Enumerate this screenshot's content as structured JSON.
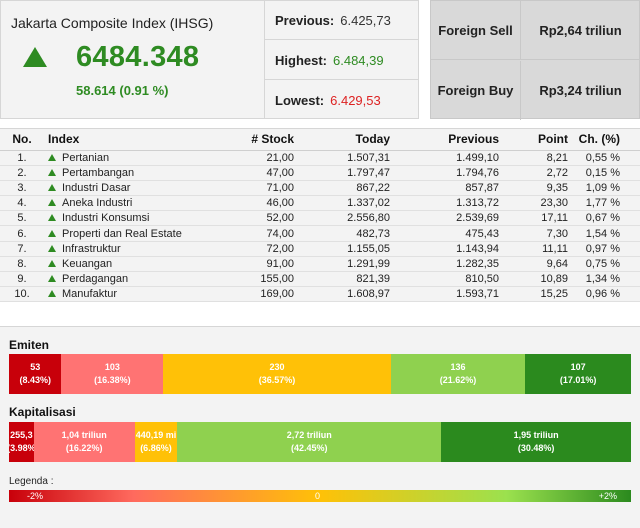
{
  "summary": {
    "index_title": "Jakarta Composite Index (IHSG)",
    "index_value": "6484.348",
    "index_change": "58.614 (0.91 %)",
    "previous_label": "Previous:",
    "previous_value": "6.425,73",
    "highest_label": "Highest:",
    "highest_value": "6.484,39",
    "lowest_label": "Lowest:",
    "lowest_value": "6.429,53",
    "foreign_sell_label": "Foreign Sell",
    "foreign_sell_value": "Rp2,64 triliun",
    "foreign_buy_label": "Foreign Buy",
    "foreign_buy_value": "Rp3,24 triliun",
    "up_color": "#2e8b22",
    "down_color": "#dd2222"
  },
  "table": {
    "headers": {
      "no": "No.",
      "index": "Index",
      "stock": "# Stock",
      "today": "Today",
      "previous": "Previous",
      "point": "Point",
      "change": "Ch. (%)"
    },
    "rows": [
      {
        "no": "1.",
        "index": "Pertanian",
        "stock": "21,00",
        "today": "1.507,31",
        "previous": "1.499,10",
        "point": "8,21",
        "change": "0,55 %"
      },
      {
        "no": "2.",
        "index": "Pertambangan",
        "stock": "47,00",
        "today": "1.797,47",
        "previous": "1.794,76",
        "point": "2,72",
        "change": "0,15 %"
      },
      {
        "no": "3.",
        "index": "Industri Dasar",
        "stock": "71,00",
        "today": "867,22",
        "previous": "857,87",
        "point": "9,35",
        "change": "1,09 %"
      },
      {
        "no": "4.",
        "index": "Aneka Industri",
        "stock": "46,00",
        "today": "1.337,02",
        "previous": "1.313,72",
        "point": "23,30",
        "change": "1,77 %"
      },
      {
        "no": "5.",
        "index": "Industri Konsumsi",
        "stock": "52,00",
        "today": "2.556,80",
        "previous": "2.539,69",
        "point": "17,11",
        "change": "0,67 %"
      },
      {
        "no": "6.",
        "index": "Properti dan Real Estate",
        "stock": "74,00",
        "today": "482,73",
        "previous": "475,43",
        "point": "7,30",
        "change": "1,54 %"
      },
      {
        "no": "7.",
        "index": "Infrastruktur",
        "stock": "72,00",
        "today": "1.155,05",
        "previous": "1.143,94",
        "point": "11,11",
        "change": "0,97 %"
      },
      {
        "no": "8.",
        "index": "Keuangan",
        "stock": "91,00",
        "today": "1.291,99",
        "previous": "1.282,35",
        "point": "9,64",
        "change": "0,75 %"
      },
      {
        "no": "9.",
        "index": "Perdagangan",
        "stock": "155,00",
        "today": "821,39",
        "previous": "810,50",
        "point": "10,89",
        "change": "1,34 %"
      },
      {
        "no": "10.",
        "index": "Manufaktur",
        "stock": "169,00",
        "today": "1.608,97",
        "previous": "1.593,71",
        "point": "15,25",
        "change": "0,96 %"
      }
    ]
  },
  "emiten": {
    "title": "Emiten",
    "segments": [
      {
        "label": "53",
        "pct": "(8.43%)",
        "share": 8.43,
        "color": "#c8000a"
      },
      {
        "label": "103",
        "pct": "(16.38%)",
        "share": 16.38,
        "color": "#ff7373"
      },
      {
        "label": "230",
        "pct": "(36.57%)",
        "share": 36.57,
        "color": "#ffc107"
      },
      {
        "label": "136",
        "pct": "(21.62%)",
        "share": 21.62,
        "color": "#8fd14f"
      },
      {
        "label": "107",
        "pct": "(17.01%)",
        "share": 17.01,
        "color": "#2b8a1e"
      }
    ]
  },
  "kapitalisasi": {
    "title": "Kapitalisasi",
    "segments": [
      {
        "label": "255,3",
        "pct": "(3.98%",
        "share": 3.98,
        "color": "#c8000a"
      },
      {
        "label": "1,04 triliun",
        "pct": "(16.22%)",
        "share": 16.22,
        "color": "#ff7373"
      },
      {
        "label": "440,19 mi",
        "pct": "(6.86%)",
        "share": 6.86,
        "color": "#ffc107"
      },
      {
        "label": "2,72 triliun",
        "pct": "(42.45%)",
        "share": 42.45,
        "color": "#8fd14f"
      },
      {
        "label": "1,95 triliun",
        "pct": "(30.48%)",
        "share": 30.48,
        "color": "#2b8a1e"
      }
    ]
  },
  "legend": {
    "title": "Legenda :",
    "min": "-2%",
    "mid": "0",
    "max": "+2%"
  }
}
